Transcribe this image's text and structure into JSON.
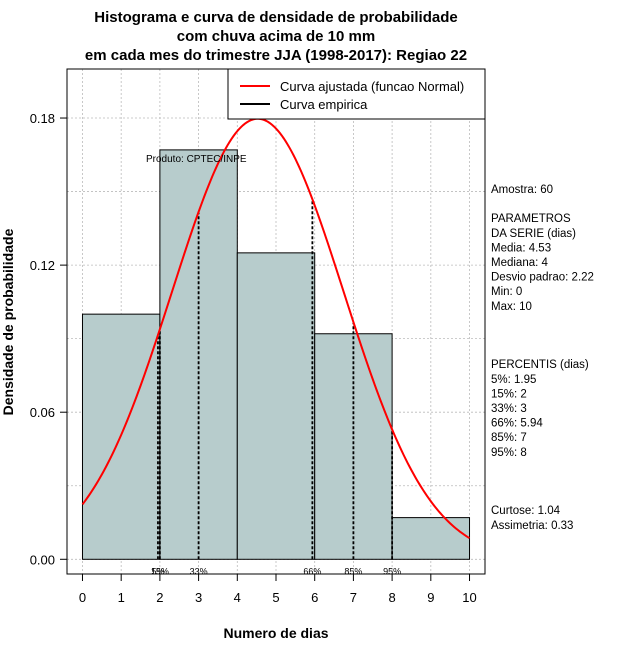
{
  "chart_data": {
    "type": "bar",
    "title_lines": [
      "Histograma e curva de densidade de probabilidade",
      "com chuva acima de 10 mm",
      "em cada mes do trimestre JJA (1998-2017): Regiao 22"
    ],
    "xlabel": "Numero de dias",
    "ylabel": "Densidade de probabilidade",
    "xlim": [
      -0.4,
      10.4
    ],
    "ylim": [
      -0.006,
      0.2
    ],
    "x_ticks": [
      0,
      1,
      2,
      3,
      4,
      5,
      6,
      7,
      8,
      9,
      10
    ],
    "x_tick_labels": [
      "0",
      "1",
      "2",
      "3",
      "4",
      "5",
      "6",
      "7",
      "8",
      "9",
      "10"
    ],
    "y_ticks": [
      0,
      0.06,
      0.12,
      0.18
    ],
    "y_tick_labels": [
      "0.00",
      "0.06",
      "0.12",
      "0.18"
    ],
    "grid": true,
    "bins": [
      {
        "from": 0,
        "to": 2,
        "density": 0.1
      },
      {
        "from": 2,
        "to": 4,
        "density": 0.167
      },
      {
        "from": 4,
        "to": 6,
        "density": 0.125
      },
      {
        "from": 6,
        "to": 8,
        "density": 0.092
      },
      {
        "from": 8,
        "to": 10,
        "density": 0.017
      }
    ],
    "normal_fit": {
      "mean": 4.53,
      "sd": 2.22
    },
    "percentile_lines": [
      {
        "label": "5%",
        "x": 1.95
      },
      {
        "label": "15%",
        "x": 2
      },
      {
        "label": "33%",
        "x": 3
      },
      {
        "label": "66%",
        "x": 5.94
      },
      {
        "label": "85%",
        "x": 7
      },
      {
        "label": "95%",
        "x": 8
      }
    ],
    "legend": {
      "placement": "top-right",
      "entries": [
        {
          "label": "Curva ajustada (funcao Normal)",
          "color": "#ff0000"
        },
        {
          "label": "Curva empirica",
          "color": "#000000"
        }
      ]
    },
    "annotation": "Produto: CPTEC/INPE",
    "colors": {
      "bar_fill": "#b7cccc",
      "fit_line": "#ff0000",
      "grid": "#bbbbbb",
      "axis": "#000000"
    }
  },
  "stats_panel": [
    "Amostra: 60",
    "",
    " PARAMETROS",
    "DA SERIE (dias)",
    "  Media: 4.53",
    "  Mediana: 4",
    "  Desvio padrao: 2.22",
    "  Min: 0",
    "  Max: 10",
    "",
    "",
    "",
    "PERCENTIS (dias)",
    "  5%: 1.95",
    "  15%: 2",
    "  33%: 3",
    "  66%: 5.94",
    "  85%: 7",
    "  95%: 8",
    "",
    "",
    "",
    "  Curtose: 1.04",
    "Assimetria: 0.33"
  ]
}
